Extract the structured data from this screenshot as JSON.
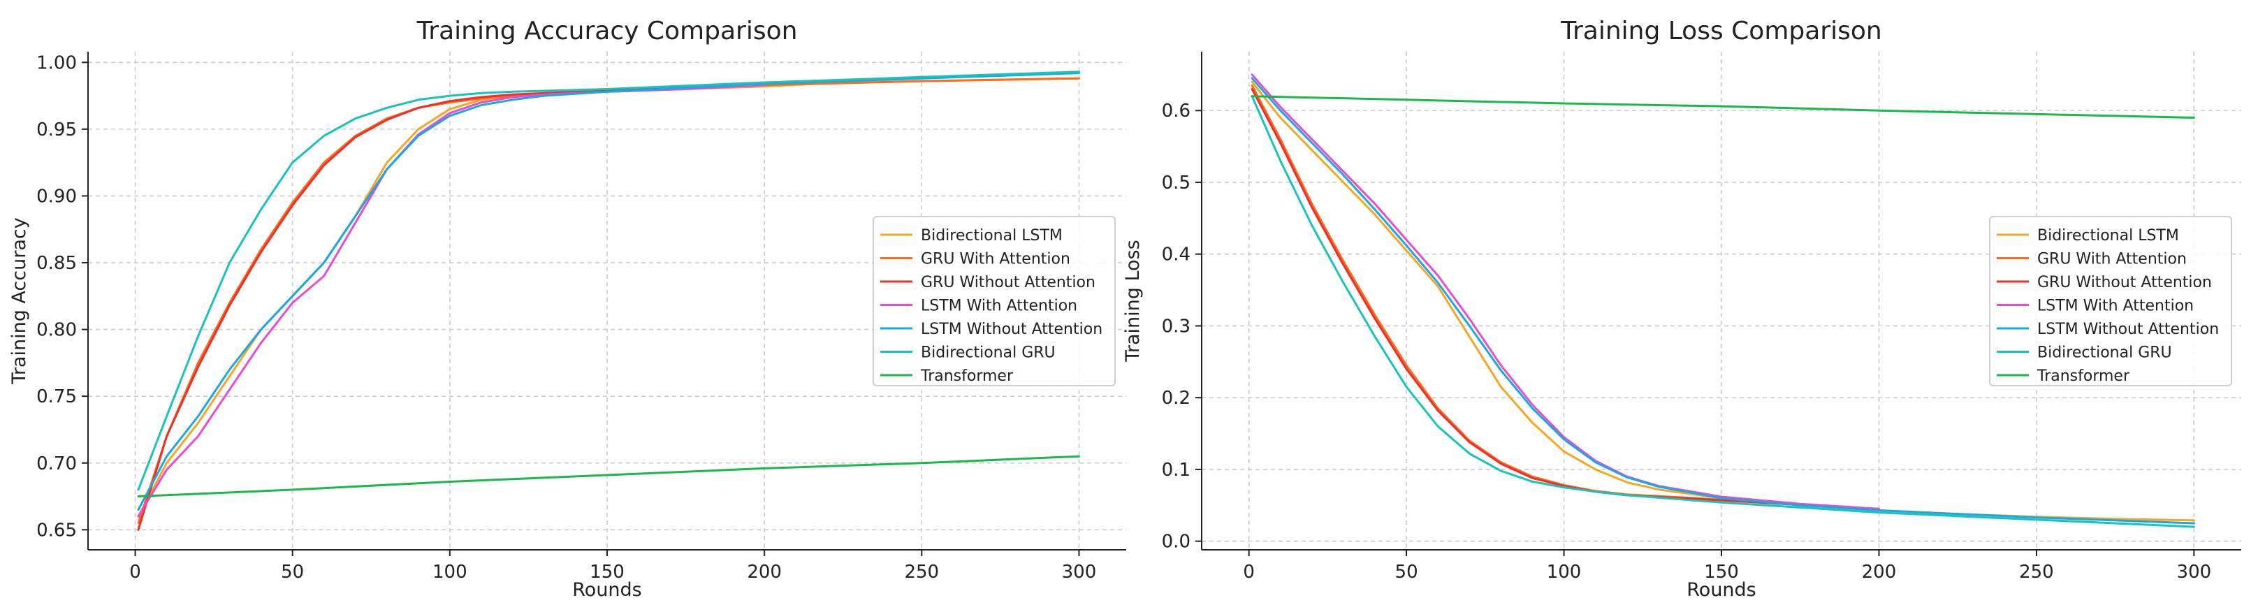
{
  "chart_data": [
    {
      "type": "line",
      "title": "Training Accuracy Comparison",
      "xlabel": "Rounds",
      "ylabel": "Training Accuracy",
      "xlim": [
        -15,
        315
      ],
      "ylim": [
        0.635,
        1.008
      ],
      "xticks": [
        0,
        50,
        100,
        150,
        200,
        250,
        300
      ],
      "yticks": [
        0.65,
        0.7,
        0.75,
        0.8,
        0.85,
        0.9,
        0.95,
        1.0
      ],
      "ytick_labels": [
        "0.65",
        "0.70",
        "0.75",
        "0.80",
        "0.85",
        "0.90",
        "0.95",
        "1.00"
      ],
      "grid": true,
      "legend": "center-right",
      "series": [
        {
          "name": "Bidirectional LSTM",
          "color": "#f5a623",
          "x": [
            1,
            10,
            20,
            30,
            40,
            50,
            60,
            70,
            80,
            90,
            100,
            110,
            120,
            130,
            150,
            175,
            200,
            225,
            250,
            275,
            300
          ],
          "y": [
            0.66,
            0.7,
            0.73,
            0.765,
            0.8,
            0.825,
            0.85,
            0.885,
            0.925,
            0.95,
            0.965,
            0.972,
            0.975,
            0.976,
            0.978,
            0.98,
            0.982,
            0.985,
            0.986,
            0.987,
            0.988
          ]
        },
        {
          "name": "GRU With Attention",
          "color": "#ff6a1f",
          "x": [
            1,
            10,
            20,
            30,
            40,
            50,
            60,
            70,
            80,
            90,
            100,
            110,
            120,
            150,
            200,
            250,
            300
          ],
          "y": [
            0.655,
            0.72,
            0.775,
            0.82,
            0.86,
            0.895,
            0.925,
            0.945,
            0.958,
            0.966,
            0.97,
            0.973,
            0.975,
            0.978,
            0.983,
            0.986,
            0.988
          ]
        },
        {
          "name": "GRU Without Attention",
          "color": "#e8322a",
          "x": [
            1,
            10,
            20,
            30,
            40,
            50,
            60,
            70,
            80,
            90,
            100,
            110,
            120,
            150,
            200
          ],
          "y": [
            0.65,
            0.72,
            0.772,
            0.818,
            0.858,
            0.893,
            0.923,
            0.944,
            0.957,
            0.966,
            0.971,
            0.974,
            0.976,
            0.979,
            0.984
          ]
        },
        {
          "name": "LSTM With Attention",
          "color": "#e84ccf",
          "x": [
            1,
            10,
            20,
            30,
            40,
            50,
            60,
            70,
            80,
            90,
            100,
            110,
            120,
            130,
            150,
            175,
            200
          ],
          "y": [
            0.66,
            0.695,
            0.72,
            0.755,
            0.79,
            0.82,
            0.84,
            0.88,
            0.92,
            0.946,
            0.962,
            0.97,
            0.974,
            0.976,
            0.978,
            0.98,
            0.983
          ]
        },
        {
          "name": "LSTM Without Attention",
          "color": "#1aa7e6",
          "x": [
            1,
            10,
            20,
            30,
            40,
            50,
            60,
            70,
            80,
            90,
            100,
            110,
            120,
            130,
            150,
            175,
            200,
            250,
            300
          ],
          "y": [
            0.665,
            0.705,
            0.735,
            0.77,
            0.8,
            0.825,
            0.85,
            0.885,
            0.92,
            0.945,
            0.96,
            0.968,
            0.972,
            0.975,
            0.978,
            0.981,
            0.984,
            0.988,
            0.992
          ]
        },
        {
          "name": "Bidirectional GRU",
          "color": "#19c3b8",
          "x": [
            1,
            10,
            20,
            30,
            40,
            50,
            60,
            70,
            80,
            90,
            100,
            110,
            120,
            150,
            200,
            250,
            300
          ],
          "y": [
            0.68,
            0.735,
            0.795,
            0.85,
            0.89,
            0.925,
            0.945,
            0.958,
            0.966,
            0.972,
            0.975,
            0.977,
            0.978,
            0.98,
            0.985,
            0.989,
            0.993
          ]
        },
        {
          "name": "Transformer",
          "color": "#18b84a",
          "x": [
            1,
            50,
            100,
            150,
            200,
            250,
            300
          ],
          "y": [
            0.675,
            0.68,
            0.686,
            0.691,
            0.696,
            0.7,
            0.705
          ]
        }
      ]
    },
    {
      "type": "line",
      "title": "Training Loss Comparison",
      "xlabel": "Rounds",
      "ylabel": "Training Loss",
      "xlim": [
        -15,
        315
      ],
      "ylim": [
        -0.012,
        0.682
      ],
      "xticks": [
        0,
        50,
        100,
        150,
        200,
        250,
        300
      ],
      "yticks": [
        0.0,
        0.1,
        0.2,
        0.3,
        0.4,
        0.5,
        0.6
      ],
      "ytick_labels": [
        "0.0",
        "0.1",
        "0.2",
        "0.3",
        "0.4",
        "0.5",
        "0.6"
      ],
      "grid": true,
      "legend": "center-right",
      "series": [
        {
          "name": "Bidirectional LSTM",
          "color": "#f5a623",
          "x": [
            1,
            10,
            20,
            30,
            40,
            50,
            60,
            70,
            80,
            90,
            100,
            110,
            120,
            130,
            150,
            175,
            200,
            225,
            250,
            275,
            300
          ],
          "y": [
            0.64,
            0.59,
            0.545,
            0.5,
            0.455,
            0.405,
            0.355,
            0.285,
            0.215,
            0.165,
            0.125,
            0.1,
            0.082,
            0.072,
            0.06,
            0.05,
            0.043,
            0.038,
            0.034,
            0.031,
            0.029
          ]
        },
        {
          "name": "GRU With Attention",
          "color": "#ff6a1f",
          "x": [
            1,
            10,
            20,
            30,
            40,
            50,
            60,
            70,
            80,
            90,
            100,
            110,
            120,
            150,
            200
          ],
          "y": [
            0.635,
            0.56,
            0.47,
            0.39,
            0.315,
            0.245,
            0.185,
            0.14,
            0.11,
            0.09,
            0.078,
            0.07,
            0.065,
            0.058,
            0.045
          ]
        },
        {
          "name": "GRU Without Attention",
          "color": "#e8322a",
          "x": [
            1,
            10,
            20,
            30,
            40,
            50,
            60,
            70,
            80,
            90,
            100,
            110,
            120,
            150,
            200
          ],
          "y": [
            0.63,
            0.555,
            0.465,
            0.385,
            0.31,
            0.24,
            0.182,
            0.138,
            0.108,
            0.088,
            0.077,
            0.069,
            0.064,
            0.057,
            0.044
          ]
        },
        {
          "name": "LSTM With Attention",
          "color": "#e84ccf",
          "x": [
            1,
            10,
            20,
            30,
            40,
            50,
            60,
            70,
            80,
            90,
            100,
            110,
            120,
            130,
            150,
            175,
            200
          ],
          "y": [
            0.65,
            0.605,
            0.56,
            0.515,
            0.47,
            0.42,
            0.37,
            0.31,
            0.245,
            0.19,
            0.145,
            0.112,
            0.09,
            0.077,
            0.062,
            0.052,
            0.045
          ]
        },
        {
          "name": "LSTM Without Attention",
          "color": "#1aa7e6",
          "x": [
            1,
            10,
            20,
            30,
            40,
            50,
            60,
            70,
            80,
            90,
            100,
            110,
            120,
            130,
            150,
            175,
            200,
            250,
            300
          ],
          "y": [
            0.645,
            0.6,
            0.555,
            0.51,
            0.462,
            0.412,
            0.36,
            0.3,
            0.238,
            0.185,
            0.142,
            0.11,
            0.089,
            0.076,
            0.06,
            0.05,
            0.043,
            0.033,
            0.025
          ]
        },
        {
          "name": "Bidirectional GRU",
          "color": "#19c3b8",
          "x": [
            1,
            10,
            20,
            30,
            40,
            50,
            60,
            70,
            80,
            90,
            100,
            110,
            120,
            150,
            200,
            250,
            300
          ],
          "y": [
            0.62,
            0.53,
            0.44,
            0.36,
            0.285,
            0.215,
            0.16,
            0.122,
            0.098,
            0.083,
            0.075,
            0.069,
            0.064,
            0.054,
            0.04,
            0.03,
            0.02
          ]
        },
        {
          "name": "Transformer",
          "color": "#18b84a",
          "x": [
            1,
            50,
            100,
            150,
            200,
            250,
            300
          ],
          "y": [
            0.62,
            0.615,
            0.61,
            0.606,
            0.6,
            0.595,
            0.59
          ]
        }
      ]
    }
  ]
}
